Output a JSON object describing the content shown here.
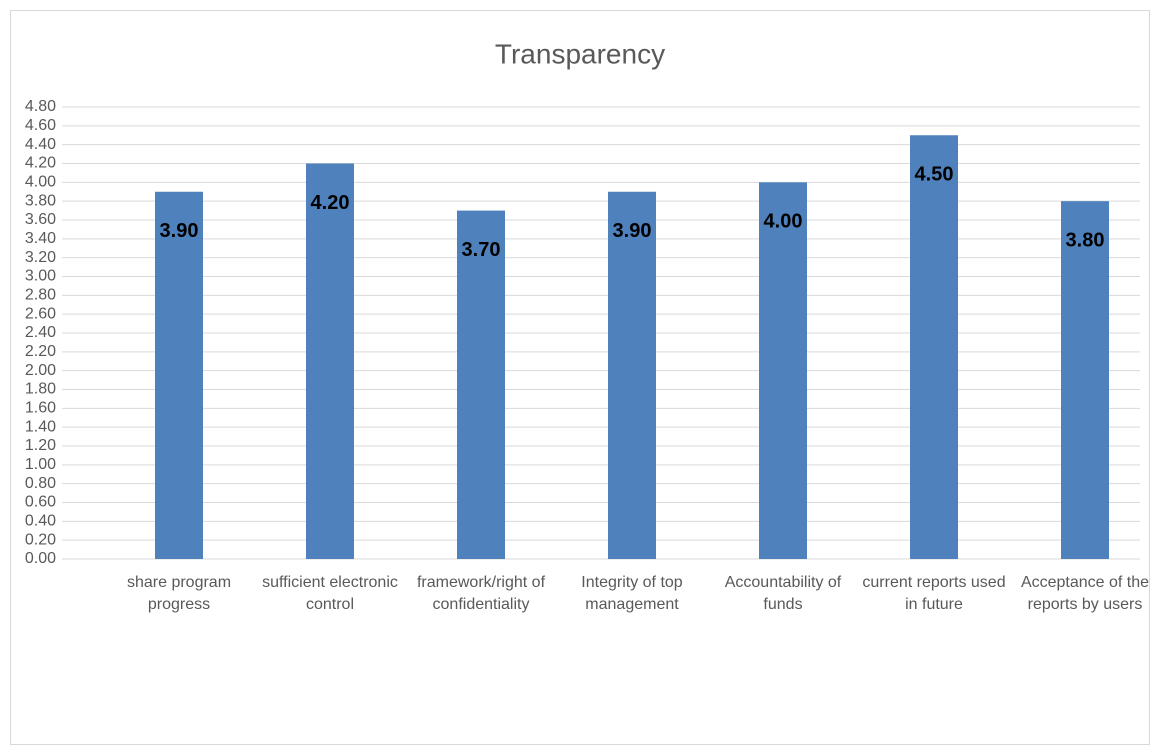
{
  "chart_data": {
    "type": "bar",
    "title": "Transparency",
    "categories": [
      "share program progress",
      "sufficient electronic control",
      "framework/right of confidentiality",
      "Integrity of top management",
      "Accountability of funds",
      "current reports used in future",
      "Acceptance of the reports by users"
    ],
    "values": [
      3.9,
      4.2,
      3.7,
      3.9,
      4.0,
      4.5,
      3.8
    ],
    "value_labels": [
      "3.90",
      "4.20",
      "3.70",
      "3.90",
      "4.00",
      "4.50",
      "3.80"
    ],
    "color": "#4f81bd",
    "ylim": [
      0,
      4.8
    ],
    "yticks": [
      {
        "value": 0,
        "label": "0.00"
      },
      {
        "value": 0.2,
        "label": "0.20"
      },
      {
        "value": 0.4,
        "label": "0.40"
      },
      {
        "value": 0.6,
        "label": "0.60"
      },
      {
        "value": 0.8,
        "label": "0.80"
      },
      {
        "value": 1.0,
        "label": "1.00"
      },
      {
        "value": 1.2,
        "label": "1.20"
      },
      {
        "value": 1.4,
        "label": "1.40"
      },
      {
        "value": 1.6,
        "label": "1.60"
      },
      {
        "value": 1.8,
        "label": "1.80"
      },
      {
        "value": 2.0,
        "label": "2.00"
      },
      {
        "value": 2.2,
        "label": "2.20"
      },
      {
        "value": 2.4,
        "label": "2.40"
      },
      {
        "value": 2.6,
        "label": "2.60"
      },
      {
        "value": 2.8,
        "label": "2.80"
      },
      {
        "value": 3.0,
        "label": "3.00"
      },
      {
        "value": 3.2,
        "label": "3.20"
      },
      {
        "value": 3.4,
        "label": "3.40"
      },
      {
        "value": 3.6,
        "label": "3.60"
      },
      {
        "value": 3.8,
        "label": "3.80"
      },
      {
        "value": 4.0,
        "label": "4.00"
      },
      {
        "value": 4.2,
        "label": "4.20"
      },
      {
        "value": 4.4,
        "label": "4.40"
      },
      {
        "value": 4.6,
        "label": "4.60"
      },
      {
        "value": 4.8,
        "label": "4.80"
      }
    ],
    "grid": true
  }
}
